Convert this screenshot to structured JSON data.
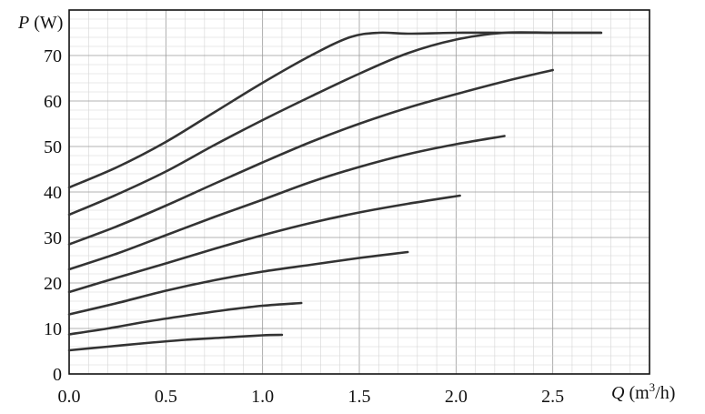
{
  "chart_data": {
    "type": "line",
    "ylabel": {
      "symbol": "P",
      "unit": " (W)"
    },
    "xlabel": {
      "symbol": "Q",
      "unit_prefix": " (m",
      "unit_sup": "3",
      "unit_suffix": "/h)"
    },
    "xlim": [
      0,
      3.0
    ],
    "ylim": [
      0,
      80
    ],
    "x_ticks": [
      "0.0",
      "0.5",
      "1.0",
      "1.5",
      "2.0",
      "2.5"
    ],
    "y_ticks": [
      "0",
      "10",
      "20",
      "30",
      "40",
      "50",
      "60",
      "70"
    ],
    "grid": true,
    "series": [
      {
        "x": [
          0.0,
          0.2,
          0.4,
          0.6,
          0.8,
          1.0,
          1.1
        ],
        "y": [
          5.2,
          6.0,
          6.8,
          7.5,
          8.0,
          8.5,
          8.6
        ]
      },
      {
        "x": [
          0.0,
          0.2,
          0.4,
          0.6,
          0.8,
          1.0,
          1.2
        ],
        "y": [
          8.7,
          10.0,
          11.5,
          12.8,
          14.0,
          15.0,
          15.6
        ]
      },
      {
        "x": [
          0.0,
          0.25,
          0.5,
          0.75,
          1.0,
          1.25,
          1.5,
          1.75
        ],
        "y": [
          13.1,
          15.6,
          18.3,
          20.6,
          22.5,
          24.0,
          25.5,
          26.8
        ]
      },
      {
        "x": [
          0.0,
          0.25,
          0.5,
          0.75,
          1.0,
          1.25,
          1.5,
          1.75,
          2.02
        ],
        "y": [
          18.0,
          21.2,
          24.3,
          27.5,
          30.5,
          33.2,
          35.5,
          37.4,
          39.2
        ]
      },
      {
        "x": [
          0.0,
          0.25,
          0.5,
          0.75,
          1.0,
          1.25,
          1.5,
          1.75,
          2.0,
          2.25
        ],
        "y": [
          23.0,
          26.5,
          30.5,
          34.5,
          38.3,
          42.2,
          45.5,
          48.3,
          50.5,
          52.3
        ]
      },
      {
        "x": [
          0.0,
          0.25,
          0.5,
          0.75,
          1.0,
          1.25,
          1.5,
          1.75,
          2.0,
          2.25,
          2.5
        ],
        "y": [
          28.5,
          32.5,
          37.0,
          41.8,
          46.5,
          51.0,
          55.0,
          58.5,
          61.5,
          64.3,
          66.8
        ]
      },
      {
        "x": [
          0.0,
          0.25,
          0.5,
          0.75,
          1.0,
          1.25,
          1.5,
          1.75,
          2.0,
          2.25,
          2.5,
          2.75
        ],
        "y": [
          35.0,
          39.5,
          44.5,
          50.3,
          55.8,
          61.0,
          66.0,
          70.5,
          73.5,
          75.0,
          75.0,
          75.0
        ]
      },
      {
        "x": [
          0.0,
          0.25,
          0.5,
          0.75,
          1.0,
          1.25,
          1.45,
          1.6,
          1.75,
          2.0,
          2.25,
          2.5,
          2.75
        ],
        "y": [
          41.0,
          45.5,
          51.0,
          57.5,
          64.0,
          70.0,
          74.0,
          75.0,
          74.8,
          75.0,
          75.0,
          75.0,
          75.0
        ]
      }
    ]
  }
}
